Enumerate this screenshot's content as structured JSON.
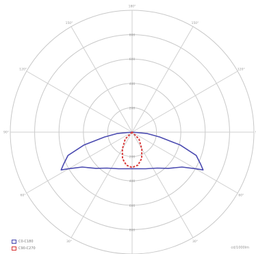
{
  "chart_data": {
    "type": "polar-line",
    "angle_labels": [
      "180°",
      "150°",
      "120°",
      "90°",
      "60°",
      "30°",
      "0°",
      "30°",
      "60°",
      "90°",
      "120°",
      "150°"
    ],
    "ring_labels": [
      "200",
      "400",
      "600",
      "800"
    ],
    "series": [
      {
        "name": "C0-C180",
        "color": "#4a4ab0",
        "style": "solid",
        "points": [
          [
            -90,
            0
          ],
          [
            -85,
            120
          ],
          [
            -80,
            230
          ],
          [
            -75,
            410
          ],
          [
            -70,
            560
          ],
          [
            -65,
            620
          ],
          [
            -62,
            660
          ],
          [
            -60,
            600
          ],
          [
            -55,
            500
          ],
          [
            -45,
            420
          ],
          [
            -35,
            360
          ],
          [
            -20,
            320
          ],
          [
            0,
            300
          ],
          [
            20,
            320
          ],
          [
            35,
            360
          ],
          [
            45,
            420
          ],
          [
            55,
            500
          ],
          [
            60,
            600
          ],
          [
            62,
            660
          ],
          [
            65,
            620
          ],
          [
            70,
            560
          ],
          [
            75,
            410
          ],
          [
            80,
            230
          ],
          [
            85,
            120
          ],
          [
            90,
            0
          ]
        ]
      },
      {
        "name": "C90-C270",
        "color": "#d83a3a",
        "style": "dashed",
        "points": [
          [
            -90,
            0
          ],
          [
            -45,
            80
          ],
          [
            -30,
            160
          ],
          [
            -20,
            230
          ],
          [
            -10,
            275
          ],
          [
            0,
            290
          ],
          [
            10,
            275
          ],
          [
            20,
            230
          ],
          [
            30,
            160
          ],
          [
            45,
            80
          ],
          [
            90,
            0
          ]
        ]
      }
    ],
    "unit": "cd/1000lm"
  },
  "legend": [
    {
      "label": "C0-C180",
      "color": "#4a4ab0"
    },
    {
      "label": "C90-C270",
      "color": "#d83a3a"
    }
  ]
}
